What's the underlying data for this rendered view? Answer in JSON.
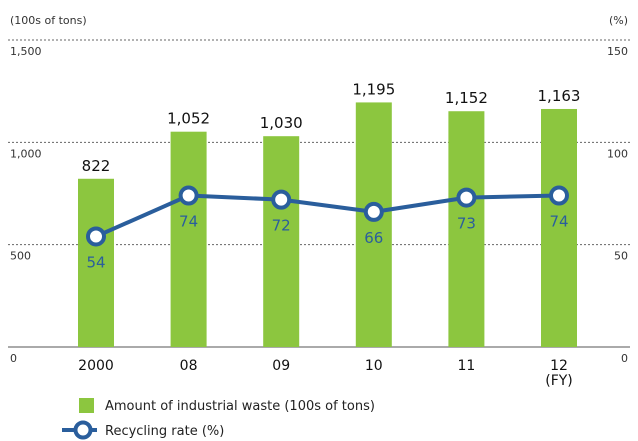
{
  "chart_data": {
    "type": "bar",
    "categories": [
      "2000",
      "08",
      "09",
      "10",
      "11",
      "12"
    ],
    "x_unit": "(FY)",
    "series": [
      {
        "name": "Amount of industrial waste (100s of tons)",
        "type": "bar",
        "axis": "left",
        "values": [
          822,
          1052,
          1030,
          1195,
          1152,
          1163
        ],
        "value_labels": [
          "822",
          "1,052",
          "1,030",
          "1,195",
          "1,152",
          "1,163"
        ],
        "color": "#8cc63f"
      },
      {
        "name": "Recycling rate (%)",
        "type": "line",
        "axis": "right",
        "values": [
          54,
          74,
          72,
          66,
          73,
          74
        ],
        "value_labels": [
          "54",
          "74",
          "72",
          "66",
          "73",
          "74"
        ],
        "color": "#2a5e9c"
      }
    ],
    "y_left": {
      "unit_label": "(100s of tons)",
      "range": [
        0,
        1500
      ],
      "ticks": [
        0,
        500,
        1000,
        1500
      ],
      "tick_labels": [
        "0",
        "500",
        "1,000",
        "1,500"
      ]
    },
    "y_right": {
      "unit_label": "(%)",
      "range": [
        0,
        150
      ],
      "ticks": [
        0,
        50,
        100,
        150
      ],
      "tick_labels": [
        "0",
        "50",
        "100",
        "150"
      ]
    },
    "grid": "dashed horizontal",
    "legend_position": "bottom-left"
  }
}
